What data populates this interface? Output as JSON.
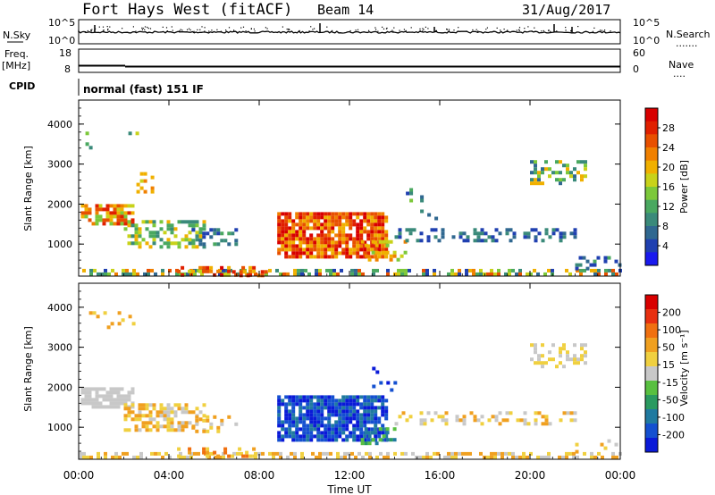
{
  "header": {
    "station": "Fort Hays West (fitACF)",
    "beam": "Beam 14",
    "date": "31/Aug/2017",
    "mode": "normal (fast) 151 IF"
  },
  "left_labels": {
    "nsky": "N.Sky",
    "freq": "Freq.",
    "freq_unit": "[MHz]",
    "cpid": "CPID"
  },
  "right_labels": {
    "nsearch": "N.Search",
    "nsearch_dots": ".......",
    "nave": "Nave",
    "nave_dots": "...."
  },
  "chart_data": [
    {
      "type": "line",
      "panel": "noise",
      "yticks_left": [
        "10^5",
        "10^0"
      ],
      "yticks_right": [
        "10^5",
        "10^0"
      ],
      "legend": [
        "N.Sky",
        "N.Search"
      ]
    },
    {
      "type": "line",
      "panel": "frequency",
      "yticks_left": [
        "18",
        "8"
      ],
      "yticks_right": [
        "60",
        "0"
      ],
      "freq_level": 10.5,
      "ylim_left": [
        8,
        18
      ]
    },
    {
      "type": "heatmap",
      "panel": "power",
      "ylabel": "Slant Range [km]",
      "yticks": [
        "1000",
        "2000",
        "3000",
        "4000"
      ],
      "ylim": [
        200,
        4600
      ],
      "xlim": [
        0,
        24
      ],
      "colorbar": {
        "label": "Power [dB]",
        "ticks": [
          "4",
          "8",
          "12",
          "16",
          "20",
          "24",
          "28"
        ],
        "colors": [
          "#1a1aee",
          "#2040b0",
          "#306890",
          "#3a8a7a",
          "#4aa860",
          "#7cc83a",
          "#c8d21a",
          "#f0b000",
          "#f08000",
          "#e85000",
          "#e02000",
          "#d80000"
        ]
      }
    },
    {
      "type": "heatmap",
      "panel": "velocity",
      "ylabel": "Slant Range [km]",
      "yticks": [
        "1000",
        "2000",
        "3000",
        "4000"
      ],
      "ylim": [
        200,
        4600
      ],
      "xlim": [
        0,
        24
      ],
      "colorbar": {
        "label": "Velocity [m s⁻¹]",
        "ticks": [
          "200",
          "100",
          "50",
          "15",
          "-15",
          "-50",
          "-100",
          "-200"
        ],
        "colors": [
          "#0a1ad8",
          "#1450d0",
          "#207aa0",
          "#2a9a60",
          "#58c040",
          "#c8c8c8",
          "#f0d040",
          "#f0a020",
          "#f07010",
          "#e83010",
          "#d80000"
        ]
      }
    }
  ],
  "xaxis": {
    "label": "Time UT",
    "ticks": [
      "00:00",
      "04:00",
      "08:00",
      "12:00",
      "16:00",
      "20:00",
      "00:00"
    ]
  }
}
